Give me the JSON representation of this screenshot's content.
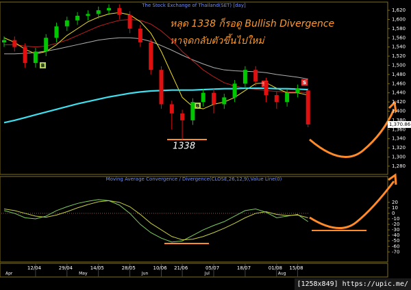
{
  "chart_data": [
    {
      "type": "candlestick",
      "title": "The Stock Exchange of Thailand(SET) [day]",
      "annotations": [
        "หลุด 1338 ก็รอดู Bullish Divergence",
        "หาจุดกลับตัวขึ้นไปใหม่",
        "1338"
      ],
      "markers": [
        "B",
        "B",
        "S",
        "S"
      ],
      "open": [
        1550,
        1555,
        1540,
        1505,
        1530,
        1560,
        1585,
        1598,
        1608,
        1612,
        1620,
        1625,
        1610,
        1580,
        1550,
        1490,
        1415,
        1395,
        1380,
        1420,
        1440,
        1415,
        1430,
        1460,
        1490,
        1465,
        1435,
        1420,
        1440,
        1445
      ],
      "high": [
        1563,
        1563,
        1548,
        1538,
        1568,
        1593,
        1606,
        1616,
        1620,
        1628,
        1633,
        1633,
        1618,
        1588,
        1558,
        1498,
        1423,
        1403,
        1428,
        1448,
        1448,
        1438,
        1468,
        1498,
        1498,
        1473,
        1443,
        1448,
        1458,
        1450
      ],
      "low": [
        1540,
        1530,
        1495,
        1495,
        1520,
        1550,
        1575,
        1588,
        1598,
        1602,
        1610,
        1600,
        1570,
        1540,
        1480,
        1405,
        1360,
        1338,
        1370,
        1410,
        1395,
        1405,
        1420,
        1450,
        1455,
        1420,
        1405,
        1410,
        1430,
        1365
      ],
      "close": [
        1555,
        1540,
        1505,
        1530,
        1560,
        1585,
        1598,
        1608,
        1612,
        1620,
        1625,
        1610,
        1580,
        1550,
        1490,
        1415,
        1395,
        1380,
        1420,
        1440,
        1415,
        1430,
        1460,
        1490,
        1465,
        1435,
        1420,
        1440,
        1450,
        1371
      ],
      "up_color": "#00c800",
      "down_color": "#e01010",
      "series": [
        {
          "color": "#b0b0b0",
          "values": [
            1525,
            1525,
            1526,
            1528,
            1531,
            1535,
            1540,
            1545,
            1550,
            1555,
            1558,
            1560,
            1560,
            1558,
            1552,
            1543,
            1533,
            1522,
            1512,
            1503,
            1495,
            1490,
            1488,
            1487,
            1486,
            1484,
            1480,
            1477,
            1474,
            1470
          ]
        },
        {
          "color": "#c02020",
          "values": [
            1545,
            1545,
            1542,
            1540,
            1542,
            1548,
            1555,
            1565,
            1575,
            1585,
            1592,
            1598,
            1600,
            1598,
            1590,
            1575,
            1555,
            1530,
            1510,
            1490,
            1475,
            1462,
            1455,
            1450,
            1448,
            1445,
            1443,
            1442,
            1442,
            1440
          ]
        },
        {
          "color": "#f0e020",
          "values": [
            1560,
            1550,
            1535,
            1525,
            1530,
            1545,
            1565,
            1580,
            1595,
            1605,
            1612,
            1615,
            1610,
            1595,
            1570,
            1530,
            1480,
            1430,
            1410,
            1405,
            1415,
            1420,
            1430,
            1445,
            1460,
            1462,
            1450,
            1440,
            1440,
            1435
          ]
        },
        {
          "color": "#40e0f0",
          "values": [
            1375,
            1380,
            1386,
            1392,
            1398,
            1404,
            1410,
            1416,
            1421,
            1426,
            1431,
            1435,
            1439,
            1442,
            1444,
            1445,
            1446,
            1446,
            1446,
            1447,
            1448,
            1449,
            1449,
            1450,
            1450,
            1450,
            1449,
            1449,
            1448,
            1447
          ]
        }
      ],
      "last_value": {
        "value": 1370.86,
        "label": "1,370.86"
      },
      "ylim": [
        1262,
        1635
      ],
      "yticks": [
        {
          "value": 1280,
          "label": "1,280"
        },
        {
          "value": 1300,
          "label": "1,300"
        },
        {
          "value": 1320,
          "label": "1,320"
        },
        {
          "value": 1340,
          "label": "1,340"
        },
        {
          "value": 1360,
          "label": "1,360"
        },
        {
          "value": 1380,
          "label": "1,380"
        },
        {
          "value": 1400,
          "label": "1,400"
        },
        {
          "value": 1420,
          "label": "1,420"
        },
        {
          "value": 1440,
          "label": "1,440"
        },
        {
          "value": 1460,
          "label": "1,460"
        },
        {
          "value": 1480,
          "label": "1,480"
        },
        {
          "value": 1500,
          "label": "1,500"
        },
        {
          "value": 1520,
          "label": "1,520"
        },
        {
          "value": 1540,
          "label": "1,540"
        },
        {
          "value": 1560,
          "label": "1,560"
        },
        {
          "value": 1580,
          "label": "1,580"
        },
        {
          "value": 1600,
          "label": "1,600"
        },
        {
          "value": 1620,
          "label": "1,620"
        }
      ]
    },
    {
      "type": "line",
      "title": "Moving Average Convergence / Divergence(CLOSE,26,12,9),Value Line(0)",
      "categories": [
        null,
        null,
        null,
        "12/04",
        null,
        null,
        "29/04",
        null,
        null,
        "14/05",
        null,
        null,
        "28/05",
        null,
        null,
        "10/06",
        null,
        "21/06",
        null,
        null,
        "05/07",
        null,
        null,
        "18/07",
        null,
        null,
        "01/08",
        null,
        "15/08",
        null
      ],
      "months": [
        "Apr",
        null,
        null,
        null,
        null,
        null,
        null,
        "May",
        null,
        null,
        null,
        null,
        null,
        "Jun",
        null,
        null,
        null,
        null,
        null,
        "Jul",
        null,
        null,
        null,
        null,
        null,
        null,
        "Aug",
        null,
        null,
        null
      ],
      "series": [
        {
          "color": "#7fcf5f",
          "values": [
            5,
            0,
            -8,
            -10,
            -5,
            5,
            12,
            18,
            22,
            25,
            23,
            15,
            0,
            -20,
            -35,
            -45,
            -52,
            -50,
            -40,
            -30,
            -22,
            -15,
            -5,
            5,
            8,
            2,
            -8,
            -5,
            -2,
            -15
          ]
        },
        {
          "color": "#c8d040",
          "values": [
            8,
            5,
            0,
            -5,
            -7,
            -3,
            3,
            10,
            16,
            21,
            23,
            20,
            12,
            -2,
            -18,
            -30,
            -42,
            -48,
            -47,
            -42,
            -35,
            -27,
            -18,
            -8,
            0,
            3,
            -2,
            -4,
            -3,
            -8
          ]
        }
      ],
      "value_line": 0,
      "ylim": [
        -87,
        62
      ],
      "yticks": [
        20,
        10,
        0,
        -10,
        -20,
        -30,
        -40,
        -50,
        -60,
        -70
      ]
    }
  ],
  "footer": "[1258x849] https://upic.me/"
}
